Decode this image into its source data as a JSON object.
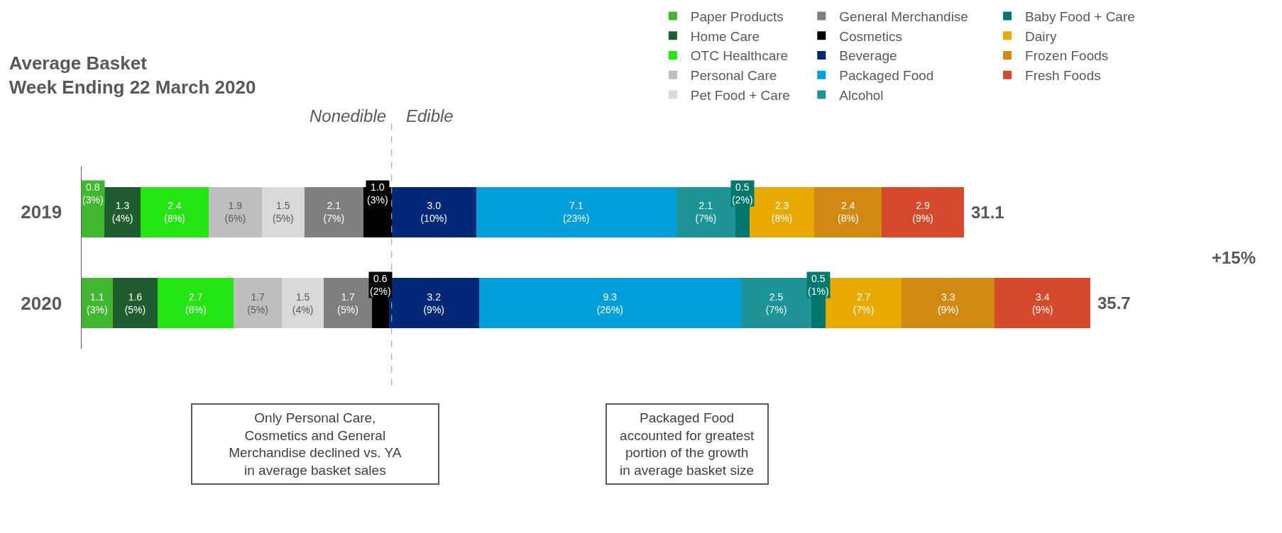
{
  "chart_data": {
    "type": "bar",
    "orientation": "horizontal",
    "stacked": true,
    "title": "Average Basket\nWeek Ending 22 March 2020",
    "categories": [
      "2019",
      "2020"
    ],
    "legend": "top right",
    "series": [
      {
        "name": "Paper Products",
        "color": "#40b72e",
        "values": [
          0.8,
          1.1
        ],
        "value_labels": [
          "0.8\n(3%)",
          "1.1\n(3%)"
        ]
      },
      {
        "name": "Home Care",
        "color": "#1f5c2f",
        "values": [
          1.3,
          1.6
        ],
        "value_labels": [
          "1.3\n(4%)",
          "1.6\n(5%)"
        ]
      },
      {
        "name": "OTC Healthcare",
        "color": "#23e512",
        "values": [
          2.4,
          2.7
        ],
        "value_labels": [
          "2.4\n(8%)",
          "2.7\n(8%)"
        ]
      },
      {
        "name": "Personal Care",
        "color": "#bebebe",
        "values": [
          1.9,
          1.7
        ],
        "value_labels": [
          "1.9\n(6%)",
          "1.7\n(5%)"
        ]
      },
      {
        "name": "Pet Food + Care",
        "color": "#d9d9d9",
        "values": [
          1.5,
          1.5
        ],
        "value_labels": [
          "1.5\n(5%)",
          "1.5\n(4%)"
        ]
      },
      {
        "name": "General Merchandise",
        "color": "#7f7f7f",
        "values": [
          2.1,
          1.7
        ],
        "value_labels": [
          "2.1\n(7%)",
          "1.7\n(5%)"
        ]
      },
      {
        "name": "Cosmetics",
        "color": "#000000",
        "values": [
          1.0,
          0.6
        ],
        "value_labels": [
          "1.0\n(3%)",
          "0.6\n(2%)"
        ]
      },
      {
        "name": "Beverage",
        "color": "#002877",
        "values": [
          3.0,
          3.2
        ],
        "value_labels": [
          "3.0\n(10%)",
          "3.2\n(9%)"
        ]
      },
      {
        "name": "Packaged Food",
        "color": "#009fdb",
        "values": [
          7.1,
          9.3
        ],
        "value_labels": [
          "7.1\n(23%)",
          "9.3\n(26%)"
        ]
      },
      {
        "name": "Alcohol",
        "color": "#1d9598",
        "values": [
          2.1,
          2.5
        ],
        "value_labels": [
          "2.1\n(7%)",
          "2.5\n(7%)"
        ]
      },
      {
        "name": "Baby Food + Care",
        "color": "#00786d",
        "values": [
          0.5,
          0.5
        ],
        "value_labels": [
          "0.5\n(2%)",
          "0.5\n(1%)"
        ]
      },
      {
        "name": "Dairy",
        "color": "#e8aa00",
        "values": [
          2.3,
          2.7
        ],
        "value_labels": [
          "2.3\n(8%)",
          "2.7\n(7%)"
        ]
      },
      {
        "name": "Frozen Foods",
        "color": "#d08a12",
        "values": [
          2.4,
          3.3
        ],
        "value_labels": [
          "2.4\n(8%)",
          "3.3\n(9%)"
        ]
      },
      {
        "name": "Fresh Foods",
        "color": "#d44a2b",
        "values": [
          2.9,
          3.4
        ],
        "value_labels": [
          "2.9\n(9%)",
          "3.4\n(9%)"
        ]
      }
    ],
    "totals": [
      "31.1",
      "35.7"
    ],
    "ref_lines": [
      {
        "axis": "x",
        "value": 11.0,
        "color": "#a6a6a6",
        "line_style": "dashed"
      }
    ],
    "annotations": [
      "Nonedible",
      "Edible",
      "+15%",
      "Only Personal Care,\nCosmetics and General\nMerchandise declined vs. YA\nin average basket sales",
      "Packaged Food\naccounted for greatest\nportion of the growth\nin average basket size"
    ]
  }
}
